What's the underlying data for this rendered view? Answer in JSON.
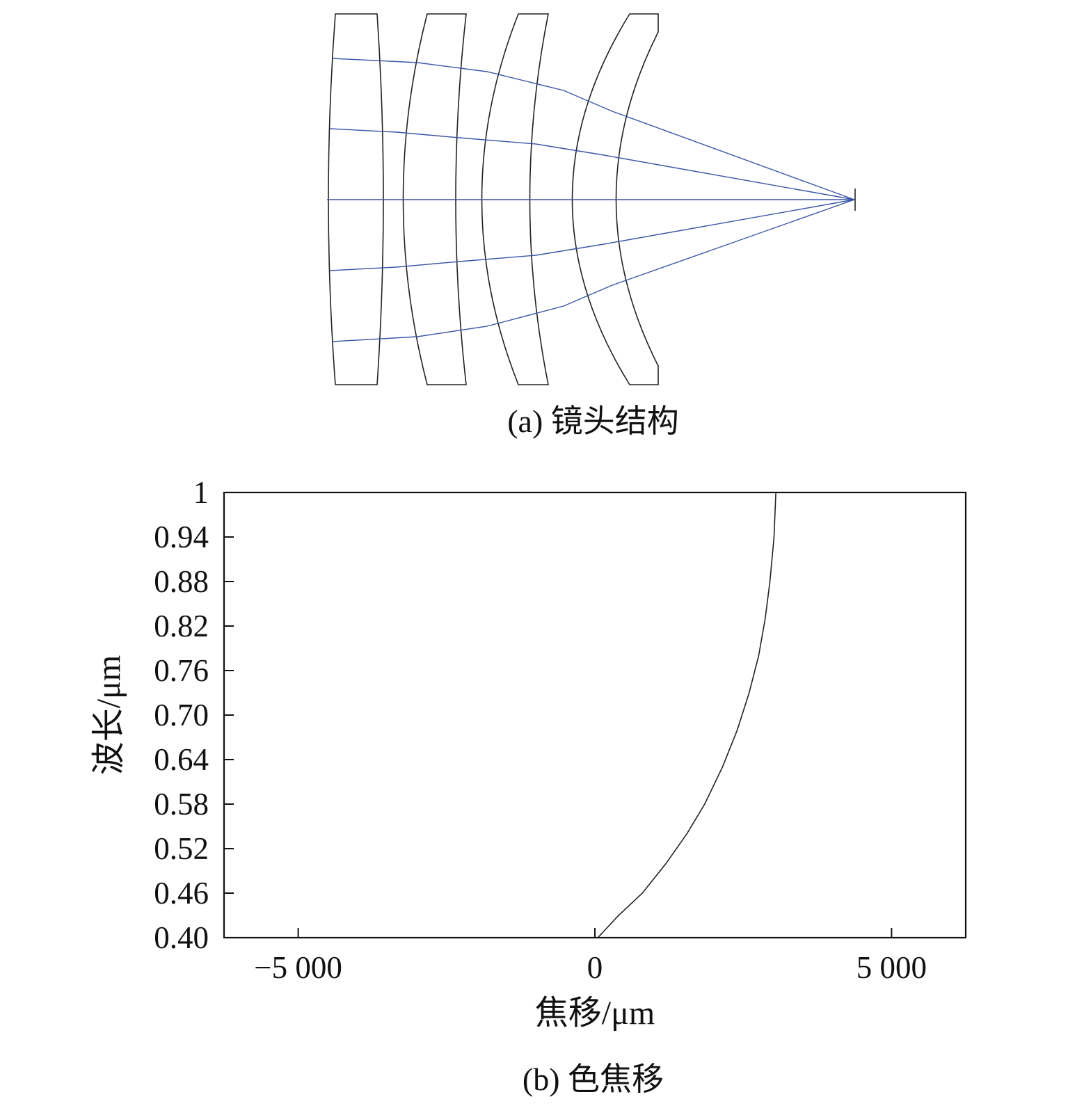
{
  "panel_a": {
    "caption": "(a) 镜头结构",
    "line_color": "#3a55a8",
    "lens_color": "#222222"
  },
  "panel_b": {
    "caption": "(b) 色焦移"
  },
  "chart_data": {
    "type": "line",
    "xlabel": "焦移/μm",
    "ylabel": "波长/μm",
    "xlim": [
      -6250,
      6250
    ],
    "ylim": [
      0.4,
      1.0
    ],
    "x_ticks": [
      -5000,
      0,
      5000
    ],
    "x_tick_labels": [
      "−5 000",
      "0",
      "5 000"
    ],
    "y_ticks": [
      0.4,
      0.46,
      0.52,
      0.58,
      0.64,
      0.7,
      0.76,
      0.82,
      0.88,
      0.94,
      1.0
    ],
    "y_tick_labels": [
      "0.40",
      "0.46",
      "0.52",
      "0.58",
      "0.64",
      "0.70",
      "0.76",
      "0.82",
      "0.88",
      "0.94",
      "1"
    ],
    "grid": false,
    "series": [
      {
        "color": "#222222",
        "x": [
          50,
          400,
          800,
          1200,
          1550,
          1850,
          2150,
          2400,
          2600,
          2760,
          2870,
          2950,
          3020,
          3050
        ],
        "y": [
          0.4,
          0.43,
          0.46,
          0.5,
          0.54,
          0.58,
          0.63,
          0.68,
          0.73,
          0.78,
          0.83,
          0.88,
          0.94,
          1.0
        ]
      }
    ]
  }
}
